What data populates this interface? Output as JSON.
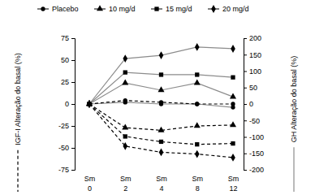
{
  "chart_data": {
    "type": "line",
    "categories": [
      "Sm 0",
      "Sm 2",
      "Sm 4",
      "Sm 8",
      "Sm 12"
    ],
    "ylabel": "IGF-I Alteração do basal (%)",
    "y2label": "GH Alteração do basal (%)",
    "ylim": [
      -75,
      75
    ],
    "yticks": [
      -75,
      -50,
      -25,
      0,
      25,
      50,
      75
    ],
    "y2lim": [
      -200,
      200
    ],
    "y2ticks": [
      -200,
      -150,
      -100,
      -50,
      0,
      50,
      100,
      150,
      200
    ],
    "legend": "top",
    "series": [
      {
        "name": "Placebo",
        "axis": "y2",
        "color": "#8c8c8c",
        "line_style": "solid",
        "marker": "circle",
        "values": [
          0,
          5,
          0,
          0,
          -10
        ]
      },
      {
        "name": "10 mg/d",
        "axis": "y2",
        "color": "#8c8c8c",
        "line_style": "solid",
        "marker": "triangle",
        "values": [
          0,
          64,
          42,
          64,
          22
        ]
      },
      {
        "name": "15 mg/d",
        "axis": "y2",
        "color": "#8c8c8c",
        "line_style": "solid",
        "marker": "square",
        "values": [
          0,
          96,
          89,
          89,
          81
        ]
      },
      {
        "name": "20 mg/d",
        "axis": "y2",
        "color": "#8c8c8c",
        "line_style": "solid",
        "marker": "diamond",
        "values": [
          0,
          138,
          148,
          173,
          168
        ]
      },
      {
        "name": "Placebo",
        "axis": "y",
        "color": "#000000",
        "line_style": "dashed",
        "marker": "circle",
        "values": [
          0,
          4,
          2,
          0,
          0
        ]
      },
      {
        "name": "10 mg/d",
        "axis": "y",
        "color": "#000000",
        "line_style": "dashed",
        "marker": "triangle",
        "values": [
          0,
          -27,
          -30,
          -25,
          -24
        ]
      },
      {
        "name": "15 mg/d",
        "axis": "y",
        "color": "#000000",
        "line_style": "dashed",
        "marker": "square",
        "values": [
          0,
          -37,
          -43,
          -46,
          -45
        ]
      },
      {
        "name": "20 mg/d",
        "axis": "y",
        "color": "#000000",
        "line_style": "dashed",
        "marker": "diamond",
        "values": [
          0,
          -48,
          -55,
          -57,
          -61
        ]
      }
    ]
  }
}
